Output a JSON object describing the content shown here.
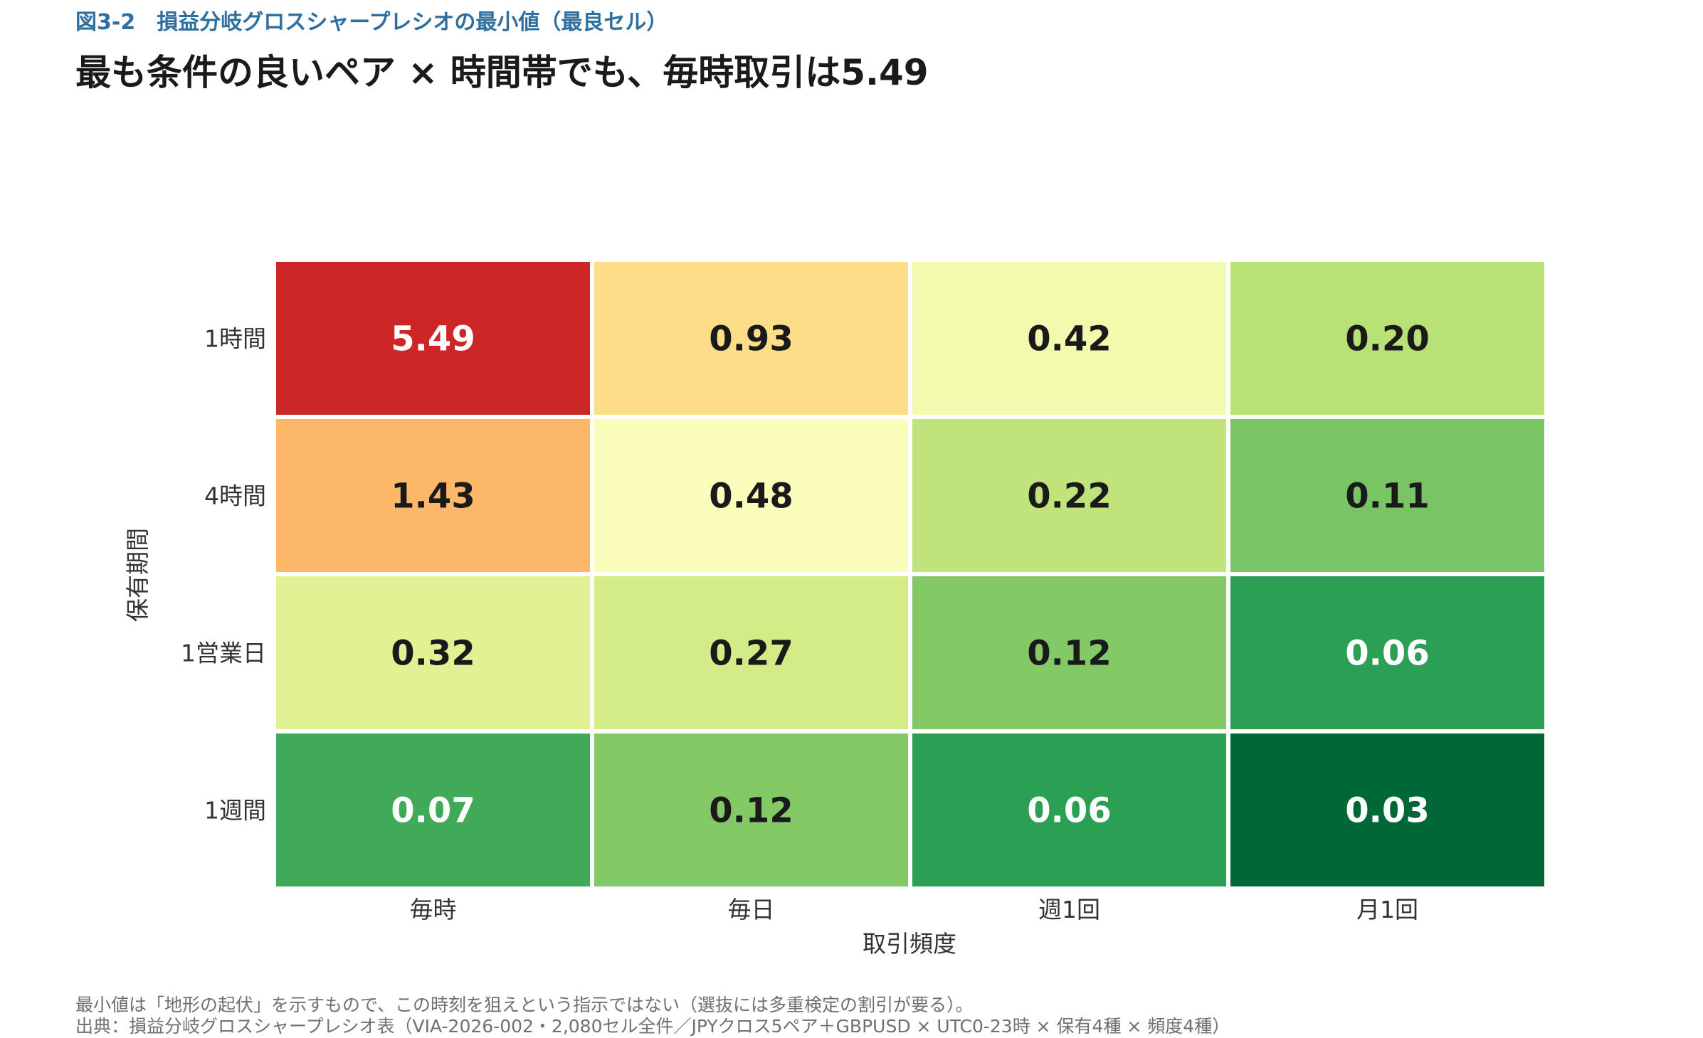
{
  "figure_label": "図3-2　損益分岐グロスシャープレシオの最小値（最良セル）",
  "headline": "最も条件の良いペア × 時間帯でも、毎時取引は5.49",
  "chart_data": {
    "type": "heatmap",
    "xlabel": "取引頻度",
    "ylabel": "保有期間",
    "x_categories": [
      "毎時",
      "毎日",
      "週1回",
      "月1回"
    ],
    "y_categories": [
      "1時間",
      "4時間",
      "1営業日",
      "1週間"
    ],
    "values": [
      [
        5.49,
        0.93,
        0.42,
        0.2
      ],
      [
        1.43,
        0.48,
        0.22,
        0.11
      ],
      [
        0.32,
        0.27,
        0.12,
        0.06
      ],
      [
        0.07,
        0.12,
        0.06,
        0.03
      ]
    ],
    "value_labels": [
      [
        "5.49",
        "0.93",
        "0.42",
        "0.20"
      ],
      [
        "1.43",
        "0.48",
        "0.22",
        "0.11"
      ],
      [
        "0.32",
        "0.27",
        "0.12",
        "0.06"
      ],
      [
        "0.07",
        "0.12",
        "0.06",
        "0.03"
      ]
    ],
    "colormap": "RdYlGn_r (log scale)",
    "color_range": [
      0.03,
      5.49
    ],
    "legend": "none",
    "grid": false
  },
  "notes": [
    "最小値は「地形の起伏」を示すもので、この時刻を狙えという指示ではない（選抜には多重検定の割引が要る）。",
    "出典：損益分岐グロスシャープレシオ表（VIA-2026-002・2,080セル全件／JPYクロス5ペア＋GBPUSD × UTC0-23時 × 保有4種 × 頻度4種）"
  ]
}
